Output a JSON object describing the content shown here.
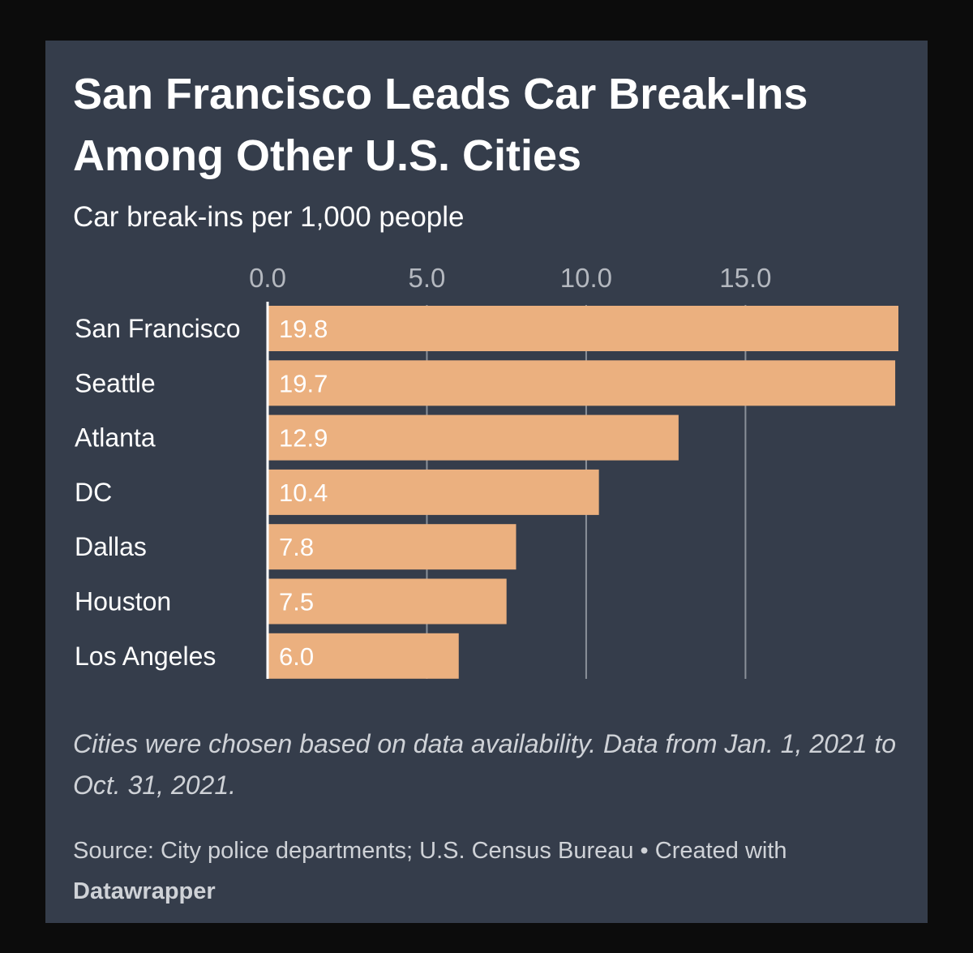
{
  "chart_data": {
    "type": "bar",
    "orientation": "horizontal",
    "title": "San Francisco Leads Car Break-Ins Among Other U.S. Cities",
    "subtitle": "Car break-ins per 1,000 people",
    "categories": [
      "San Francisco",
      "Seattle",
      "Atlanta",
      "DC",
      "Dallas",
      "Houston",
      "Los Angeles"
    ],
    "values": [
      19.8,
      19.7,
      12.9,
      10.4,
      7.8,
      7.5,
      6.0
    ],
    "value_labels": [
      "19.8",
      "19.7",
      "12.9",
      "10.4",
      "7.8",
      "7.5",
      "6.0"
    ],
    "xticks": [
      0,
      5,
      10,
      15
    ],
    "xtick_labels": [
      "0.0",
      "5.0",
      "10.0",
      "15.0"
    ],
    "xlim": [
      0,
      19.8
    ],
    "xlabel": "",
    "ylabel": "",
    "grid": true,
    "bar_color": "#ebb07f"
  },
  "notes": "Cities were chosen based on data availability. Data from Jan. 1, 2021 to Oct. 31, 2021.",
  "footer": {
    "source": "Source: City police departments; U.S. Census Bureau • Created with",
    "credit": "Datawrapper"
  },
  "colors": {
    "background": "#353d4b",
    "bar": "#ebb07f",
    "gridline": "#8a9099"
  }
}
